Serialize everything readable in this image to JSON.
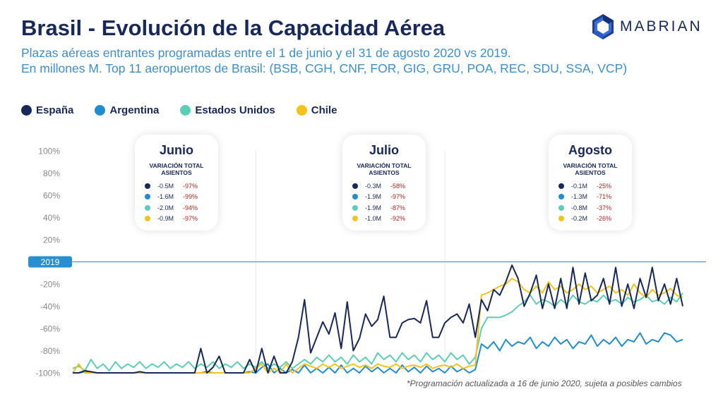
{
  "header": {
    "title": "Brasil - Evolución de la Capacidad Aérea",
    "subtitle_line1": "Plazas aéreas entrantes programadas entre el 1 de junio y el 31 de agosto 2020 vs 2019.",
    "subtitle_line2": "En millones M. Top 11 aeropuertos de Brasil: (BSB, CGH, CNF, FOR, GIG, GRU, POA, REC, SDU, SSA, VCP)"
  },
  "logo": {
    "text": "MABRIAN",
    "icon": "hexagon-logo-icon"
  },
  "footnote": "*Programación actualizada a 16 de junio 2020, sujeta a posibles cambios",
  "colors": {
    "espana": "#17285a",
    "argentina": "#1f8dcf",
    "eeuu": "#5ccdb6",
    "chile": "#f5c219",
    "baseline": "#2a8fd0",
    "pct": "#b02424"
  },
  "cards": [
    {
      "title": "Junio",
      "subtitle": "VARIACIÓN TOTAL ASIENTOS",
      "rows": [
        {
          "abs": "-0.5M",
          "pct": "-97%"
        },
        {
          "abs": "-1.6M",
          "pct": "-99%"
        },
        {
          "abs": "-2.0M",
          "pct": "-94%"
        },
        {
          "abs": "-0.9M",
          "pct": "-97%"
        }
      ]
    },
    {
      "title": "Julio",
      "subtitle": "VARIACIÓN TOTAL ASIENTOS",
      "rows": [
        {
          "abs": "-0.3M",
          "pct": "-58%"
        },
        {
          "abs": "-1.9M",
          "pct": "-97%"
        },
        {
          "abs": "-1.9M",
          "pct": "-87%"
        },
        {
          "abs": "-1.0M",
          "pct": "-92%"
        }
      ]
    },
    {
      "title": "Agosto",
      "subtitle": "VARIACIÓN TOTAL ASIENTOS",
      "rows": [
        {
          "abs": "-0.1M",
          "pct": "-25%"
        },
        {
          "abs": "-1.3M",
          "pct": "-71%"
        },
        {
          "abs": "-0.8M",
          "pct": "-37%"
        },
        {
          "abs": "-0.2M",
          "pct": "-26%"
        }
      ]
    }
  ],
  "chart_data": {
    "type": "line",
    "title": "",
    "xlabel": "",
    "ylabel": "",
    "ylim": [
      -100,
      100
    ],
    "yticks": [
      "100%",
      "80%",
      "60%",
      "40%",
      "20%",
      "2019",
      "-20%",
      "-40%",
      "-60%",
      "-80%",
      "-100%"
    ],
    "baseline_label": "2019",
    "grid": false,
    "legend_position": "top-left",
    "month_boundaries": [
      30,
      61
    ],
    "legend": [
      "España",
      "Argentina",
      "Estados Unidos",
      "Chile"
    ],
    "series": [
      {
        "name": "España",
        "values": [
          -100,
          -100,
          -98,
          -99,
          -100,
          -100,
          -100,
          -100,
          -100,
          -100,
          -100,
          -99,
          -100,
          -100,
          -100,
          -100,
          -100,
          -100,
          -100,
          -100,
          -100,
          -78,
          -100,
          -95,
          -85,
          -100,
          -100,
          -100,
          -100,
          -88,
          -100,
          -78,
          -100,
          -85,
          -100,
          -100,
          -90,
          -68,
          -34,
          -82,
          -68,
          -54,
          -65,
          -46,
          -78,
          -36,
          -80,
          -69,
          -47,
          -58,
          -52,
          -31,
          -68,
          -68,
          -55,
          -52,
          -51,
          -55,
          -35,
          -68,
          -68,
          -55,
          -50,
          -47,
          -55,
          -38,
          -68,
          -34,
          -44,
          -25,
          -30,
          -18,
          -3,
          -15,
          -40,
          -28,
          -12,
          -42,
          -20,
          -42,
          -15,
          -42,
          -5,
          -38,
          -10,
          -35,
          -30,
          -15,
          -38,
          -5,
          -40,
          -20,
          -42,
          -15,
          -32,
          -5,
          -35,
          -20,
          -38,
          -15,
          -40
        ]
      },
      {
        "name": "Argentina",
        "values": [
          -100,
          -100,
          -99,
          -100,
          -100,
          -100,
          -100,
          -100,
          -100,
          -100,
          -100,
          -100,
          -100,
          -100,
          -100,
          -100,
          -100,
          -100,
          -100,
          -100,
          -100,
          -100,
          -99,
          -100,
          -100,
          -100,
          -100,
          -100,
          -100,
          -99,
          -100,
          -95,
          -92,
          -100,
          -96,
          -100,
          -97,
          -100,
          -93,
          -100,
          -96,
          -100,
          -95,
          -100,
          -93,
          -100,
          -96,
          -100,
          -94,
          -99,
          -95,
          -100,
          -96,
          -100,
          -93,
          -99,
          -95,
          -100,
          -94,
          -99,
          -96,
          -100,
          -94,
          -99,
          -96,
          -100,
          -97,
          -74,
          -78,
          -72,
          -80,
          -70,
          -76,
          -72,
          -74,
          -68,
          -78,
          -72,
          -76,
          -68,
          -74,
          -70,
          -78,
          -72,
          -74,
          -66,
          -76,
          -70,
          -74,
          -68,
          -76,
          -70,
          -72,
          -64,
          -74,
          -70,
          -72,
          -64,
          -66,
          -72,
          -70
        ]
      },
      {
        "name": "Estados Unidos",
        "values": [
          -96,
          -94,
          -98,
          -88,
          -96,
          -92,
          -98,
          -90,
          -96,
          -92,
          -95,
          -90,
          -96,
          -92,
          -95,
          -90,
          -96,
          -92,
          -95,
          -90,
          -96,
          -92,
          -95,
          -90,
          -96,
          -92,
          -95,
          -90,
          -96,
          -92,
          -95,
          -90,
          -96,
          -92,
          -95,
          -90,
          -96,
          -92,
          -88,
          -92,
          -86,
          -90,
          -84,
          -90,
          -86,
          -92,
          -84,
          -90,
          -86,
          -92,
          -82,
          -88,
          -84,
          -90,
          -82,
          -88,
          -84,
          -90,
          -82,
          -88,
          -84,
          -90,
          -82,
          -88,
          -84,
          -92,
          -86,
          -60,
          -50,
          -50,
          -50,
          -48,
          -45,
          -40,
          -36,
          -30,
          -38,
          -34,
          -36,
          -40,
          -34,
          -38,
          -30,
          -36,
          -38,
          -34,
          -36,
          -30,
          -36,
          -34,
          -38,
          -32,
          -36,
          -34,
          -30,
          -36,
          -34,
          -38,
          -32,
          -36,
          -28
        ]
      },
      {
        "name": "Chile",
        "values": [
          -100,
          -92,
          -100,
          -100,
          -100,
          -100,
          -100,
          -100,
          -100,
          -100,
          -100,
          -100,
          -100,
          -100,
          -100,
          -100,
          -100,
          -100,
          -100,
          -100,
          -100,
          -100,
          -100,
          -100,
          -100,
          -100,
          -100,
          -100,
          -100,
          -100,
          -96,
          -92,
          -100,
          -96,
          -100,
          -92,
          -100,
          -96,
          -92,
          -94,
          -96,
          -92,
          -95,
          -92,
          -96,
          -94,
          -92,
          -95,
          -93,
          -96,
          -92,
          -94,
          -95,
          -92,
          -96,
          -94,
          -93,
          -95,
          -92,
          -96,
          -94,
          -93,
          -95,
          -92,
          -96,
          -94,
          -93,
          -30,
          -28,
          -25,
          -22,
          -20,
          -15,
          -18,
          -25,
          -28,
          -22,
          -28,
          -18,
          -25,
          -22,
          -28,
          -25,
          -20,
          -25,
          -22,
          -28,
          -25,
          -22,
          -28,
          -25,
          -30,
          -20,
          -28,
          -32,
          -25,
          -30,
          -28,
          -24,
          -30,
          -32
        ]
      }
    ]
  }
}
